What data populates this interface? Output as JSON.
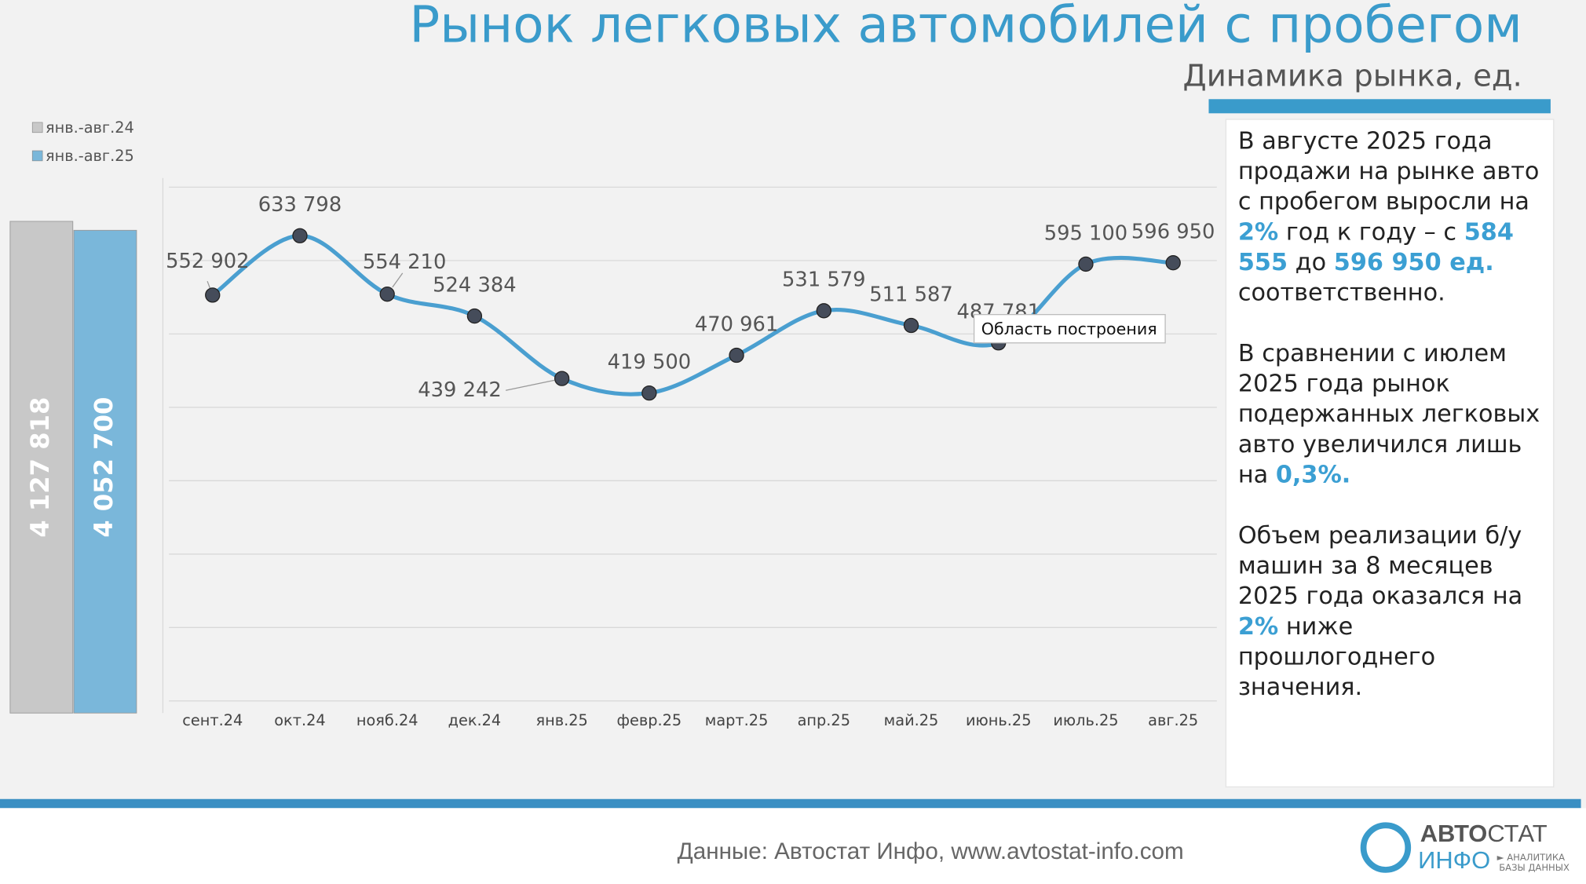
{
  "header": {
    "title": "Рынок легковых автомобилей с пробегом",
    "subtitle": "Динамика рынка, ед."
  },
  "chart_data": [
    {
      "type": "line",
      "categories": [
        "сент.24",
        "окт.24",
        "нояб.24",
        "дек.24",
        "янв.25",
        "февр.25",
        "март.25",
        "апр.25",
        "май.25",
        "июнь.25",
        "июль.25",
        "авг.25"
      ],
      "values": [
        552902,
        633798,
        554210,
        524384,
        439242,
        419500,
        470961,
        531579,
        511587,
        487781,
        595100,
        596950
      ],
      "value_labels": [
        "552 902",
        "633 798",
        "554 210",
        "524 384",
        "439 242",
        "419 500",
        "470 961",
        "531 579",
        "511 587",
        "487 781",
        "595 100",
        "596 950"
      ],
      "color": "#4a9fd0",
      "marker_color": "#454c5a",
      "ylim": [
        0,
        700000
      ],
      "yticks": [
        0,
        100000,
        200000,
        300000,
        400000,
        500000,
        600000,
        700000
      ],
      "grid": true,
      "tooltip": "Область построения"
    },
    {
      "type": "bar",
      "ylim": [
        0,
        4500000
      ],
      "series": [
        {
          "name": "янв.-авг.24",
          "color": "#c8c8c8",
          "values": [
            4127818
          ],
          "value_labels": [
            "4 127 818"
          ]
        },
        {
          "name": "янв.-авг.25",
          "color": "#7ab7da",
          "values": [
            4052700
          ],
          "value_labels": [
            "4 052 700"
          ]
        }
      ]
    }
  ],
  "text_panel": {
    "paragraphs": [
      [
        {
          "text": "В августе 2025 года продажи на рынке авто с пробегом выросли на "
        },
        {
          "text": "2%",
          "highlight": true
        },
        {
          "text": " год к году – с "
        },
        {
          "text": "584 555",
          "highlight": true
        },
        {
          "text": " до "
        },
        {
          "text": "596 950 ед.",
          "highlight": true
        },
        {
          "text": " соответственно."
        }
      ],
      [
        {
          "text": "В сравнении с июлем 2025 года рынок подержанных легковых авто увеличился лишь на "
        },
        {
          "text": "0,3%.",
          "highlight": true
        }
      ],
      [
        {
          "text": "Объем реализации б/у машин за 8 месяцев 2025 года оказался на "
        },
        {
          "text": "2%",
          "highlight": true
        },
        {
          "text": " ниже прошлогоднего значения."
        }
      ]
    ]
  },
  "footer": {
    "source": "Данные: Автостат Инфо, www.avtostat-info.com",
    "logo_a": "АВТО",
    "logo_b": "СТАТ",
    "logo_c": "ИНФО",
    "logo_d": "► АНАЛИТИКА",
    "logo_e": "БАЗЫ ДАННЫХ"
  }
}
